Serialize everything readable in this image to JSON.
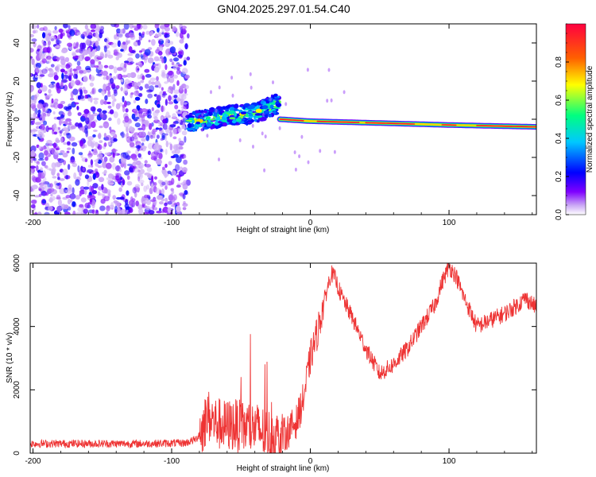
{
  "title": "GN04.2025.297.01.54.C40",
  "chart_data": [
    {
      "type": "heatmap",
      "title": "GN04.2025.297.01.54.C40",
      "xlabel": "Height of straight line (km)",
      "ylabel": "Frequency (Hz)",
      "xlim": [
        -202,
        163
      ],
      "ylim": [
        -50,
        50
      ],
      "x_ticks": [
        -200,
        -100,
        0,
        100
      ],
      "x_tick_labels": [
        "-200",
        "-100",
        "0",
        "100"
      ],
      "y_ticks": [
        -40,
        -20,
        0,
        20,
        40
      ],
      "y_tick_labels": [
        "-40",
        "-20",
        "0",
        "20",
        "40"
      ],
      "colorbar": {
        "label": "Normalized spectral amplitude",
        "range": [
          0,
          1
        ],
        "ticks": [
          0.0,
          0.2,
          0.4,
          0.6,
          0.8
        ],
        "tick_labels": [
          "0.0",
          "0.2",
          "0.4",
          "0.6",
          "0.8"
        ],
        "colormap": [
          "#ffffff",
          "#c9a6f5",
          "#7f00ff",
          "#0000ff",
          "#00c8ff",
          "#00ff80",
          "#ffff00",
          "#ff6000",
          "#ff0040"
        ]
      },
      "regions": [
        {
          "name": "noise",
          "x_range": [
            -202,
            -88
          ],
          "freq_range": [
            -50,
            50
          ],
          "amplitude": "0.0-0.2"
        },
        {
          "name": "scattered-signal",
          "x_range": [
            -88,
            -22
          ],
          "freq_center": [
            [
              -88,
              -2
            ],
            [
              -60,
              2
            ],
            [
              -40,
              3
            ],
            [
              -25,
              8
            ]
          ],
          "amplitude": "0.2-0.9"
        },
        {
          "name": "carrier-line",
          "x_range": [
            -22,
            163
          ],
          "freq_center": [
            [
              -22,
              0
            ],
            [
              0,
              -1
            ],
            [
              50,
              -2
            ],
            [
              100,
              -3
            ],
            [
              163,
              -4
            ]
          ],
          "amplitude": "0.5-1.0"
        }
      ]
    },
    {
      "type": "line",
      "title": "",
      "xlabel": "Height of straight line (km)",
      "ylabel": "SNR (10 * v/v)",
      "xlim": [
        -202,
        163
      ],
      "ylim": [
        0,
        6000
      ],
      "x_ticks": [
        -200,
        -100,
        0,
        100
      ],
      "x_tick_labels": [
        "-200",
        "-100",
        "0",
        "100"
      ],
      "y_ticks": [
        0,
        2000,
        4000,
        6000
      ],
      "y_tick_labels": [
        "0",
        "2000",
        "4000",
        "6000"
      ],
      "color": "#ee3333",
      "series": [
        {
          "name": "SNR",
          "x": [
            -202,
            -180,
            -150,
            -120,
            -90,
            -82,
            -78,
            -74,
            -70,
            -62,
            -55,
            -48,
            -40,
            -32,
            -25,
            -18,
            -10,
            -5,
            0,
            5,
            10,
            15,
            18,
            22,
            30,
            40,
            50,
            60,
            70,
            80,
            90,
            95,
            100,
            105,
            110,
            115,
            120,
            125,
            130,
            140,
            150,
            155,
            163
          ],
          "y": [
            300,
            300,
            300,
            300,
            320,
            450,
            800,
            1200,
            1000,
            850,
            900,
            800,
            800,
            600,
            500,
            600,
            1000,
            1700,
            3000,
            3800,
            4800,
            5700,
            5500,
            5000,
            4300,
            3300,
            2500,
            2800,
            3300,
            4000,
            4700,
            5400,
            5900,
            5600,
            5000,
            4500,
            4000,
            4100,
            4200,
            4400,
            4700,
            4900,
            4600
          ]
        }
      ]
    }
  ]
}
